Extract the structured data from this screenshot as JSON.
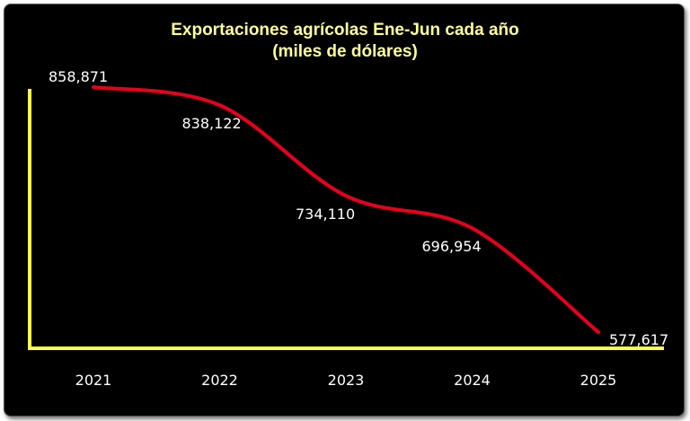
{
  "chart_data": {
    "type": "line",
    "title": "Exportaciones agrícolas Ene-Jun cada año",
    "subtitle": "(miles de dólares)",
    "categories": [
      "2021",
      "2022",
      "2023",
      "2024",
      "2025"
    ],
    "values": [
      858871,
      838122,
      734110,
      696954,
      577617
    ],
    "labels": [
      "858,871",
      "838,122",
      "734,110",
      "696,954",
      "577,617"
    ],
    "xlabel": "",
    "ylabel": "",
    "ylim": [
      577617,
      858871
    ],
    "grid": false,
    "legend": "none",
    "colors": {
      "background": "#000000",
      "line": "#E8001C",
      "axis": "#FFFF44",
      "title": "#FFFF99",
      "text": "#FFFFFF"
    }
  }
}
